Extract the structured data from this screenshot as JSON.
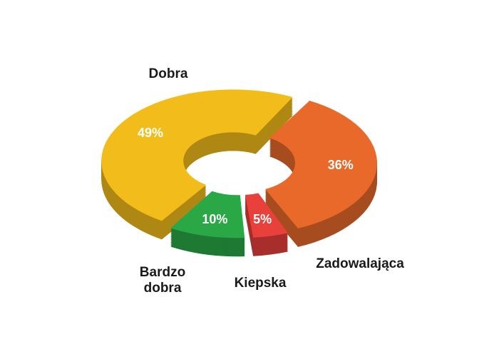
{
  "chart_data": {
    "type": "pie",
    "categories": [
      "Zadowalająca",
      "Kiepska",
      "Bardzo dobra",
      "Dobra"
    ],
    "values": [
      36,
      5,
      10,
      49
    ],
    "value_labels": [
      "36%",
      "5%",
      "10%",
      "49%"
    ],
    "colors": [
      "#e8692a",
      "#e8403a",
      "#2aa845",
      "#f2bd1a"
    ]
  }
}
